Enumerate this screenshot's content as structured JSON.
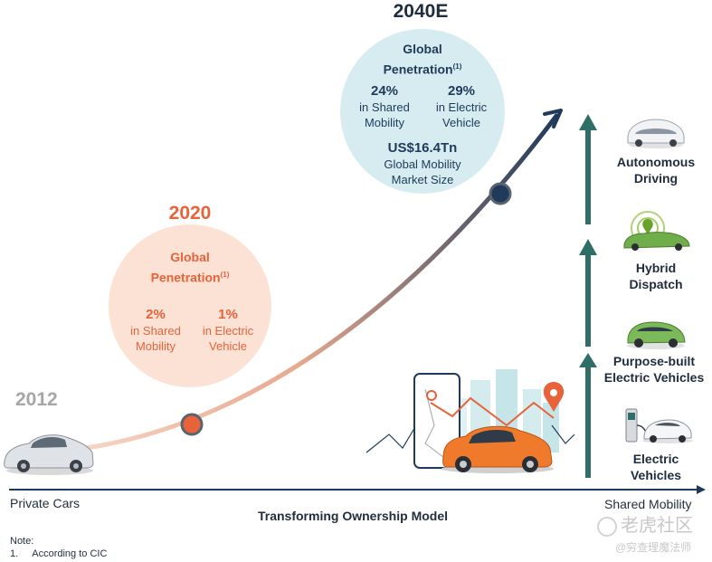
{
  "milestones": {
    "y2012": {
      "year": "2012"
    },
    "y2020": {
      "year": "2020",
      "title_line1": "Global",
      "title_line2": "Penetration",
      "footnote_mark": "(1)",
      "stat1": {
        "value": "2%",
        "line1": "in Shared",
        "line2": "Mobility"
      },
      "stat2": {
        "value": "1%",
        "line1": "in Electric",
        "line2": "Vehicle"
      }
    },
    "y2040": {
      "year": "2040E",
      "title_line1": "Global",
      "title_line2": "Penetration",
      "footnote_mark": "(1)",
      "stat1": {
        "value": "24%",
        "line1": "in Shared",
        "line2": "Mobility"
      },
      "stat2": {
        "value": "29%",
        "line1": "in Electric",
        "line2": "Vehicle"
      },
      "market": {
        "value": "US$16.4Tn",
        "line1": "Global Mobility",
        "line2": "Market Size"
      }
    }
  },
  "axis": {
    "left_label": "Private Cars",
    "right_label": "Shared Mobility",
    "title": "Transforming Ownership Model"
  },
  "stages": [
    {
      "line1": "Electric",
      "line2": "Vehicles"
    },
    {
      "line1": "Purpose-built",
      "line2": "Electric Vehicles"
    },
    {
      "line1": "Hybrid",
      "line2": "Dispatch"
    },
    {
      "line1": "Autonomous",
      "line2": "Driving"
    }
  ],
  "note": {
    "heading": "Note:",
    "item_number": "1.",
    "item_text": "According to CIC"
  },
  "watermark": {
    "line1": "老虎社区",
    "line2": "@穷查理魔法师"
  },
  "colors": {
    "accent_orange": "#e8623a",
    "navy": "#1f3a5a",
    "teal": "#2e6e66",
    "bubble_2020": "#fbe2d5",
    "bubble_2040": "#d6ecf1"
  }
}
